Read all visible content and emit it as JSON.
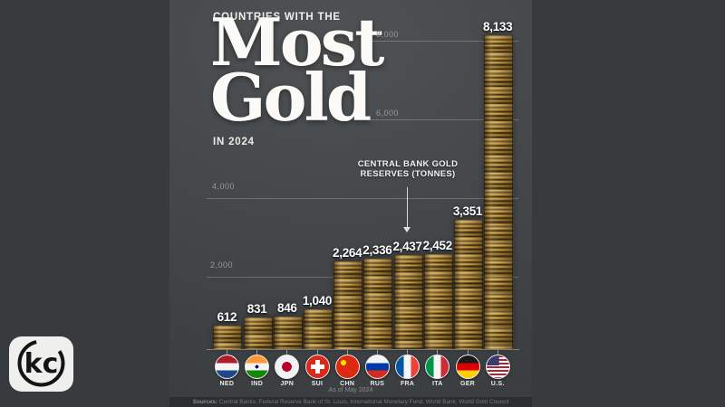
{
  "poster": {
    "kicker": "COUNTRIES WITH THE",
    "title_line1": "Most",
    "title_line2": "Gold",
    "subtitle": "IN 2024",
    "annotation_line1": "CENTRAL BANK GOLD",
    "annotation_line2": "RESERVES (TONNES)",
    "footer_asof": "As of May 2024",
    "footer_sources_label": "Sources:",
    "footer_sources": " Central Banks, Federal Reserve Bank of St. Louis, International Monetary Fund, World Bank, World Gold Council"
  },
  "chart_data": {
    "type": "bar",
    "title": "Countries with the Most Gold in 2024",
    "ylabel": "Central Bank Gold Reserves (Tonnes)",
    "xlabel": "",
    "ylim": [
      0,
      8500
    ],
    "grid": true,
    "legend": "none",
    "bar_style": "stacked-gold-coins",
    "gridlines": [
      {
        "value": 8000,
        "label": "8,000"
      },
      {
        "value": 6000,
        "label": "6,000"
      },
      {
        "value": 4000,
        "label": "4,000"
      },
      {
        "value": 2000,
        "label": "2,000"
      }
    ],
    "categories": [
      "NED",
      "IND",
      "JPN",
      "SUI",
      "CHN",
      "RUS",
      "FRA",
      "ITA",
      "GER",
      "U.S."
    ],
    "values": [
      612,
      831,
      846,
      1040,
      2264,
      2336,
      2437,
      2452,
      3351,
      8133
    ],
    "value_labels": [
      "612",
      "831",
      "846",
      "1,040",
      "2,264",
      "2,336",
      "2,437",
      "2,452",
      "3,351",
      "8,133"
    ]
  },
  "flags": [
    {
      "code": "NED",
      "name": "Netherlands",
      "type": "h3",
      "colors": [
        "#AE1C28",
        "#F5F5F5",
        "#21468B"
      ]
    },
    {
      "code": "IND",
      "name": "India",
      "type": "chakra",
      "colors": [
        "#FF9933",
        "#F5F5F5",
        "#138808"
      ],
      "accent": "#000080"
    },
    {
      "code": "JPN",
      "name": "Japan",
      "type": "disc",
      "colors": [
        "#F2F2F2",
        "#BC002D"
      ]
    },
    {
      "code": "SUI",
      "name": "Switzerland",
      "type": "cross",
      "colors": [
        "#DA291C",
        "#FFFFFF"
      ]
    },
    {
      "code": "CHN",
      "name": "China",
      "type": "star",
      "colors": [
        "#DE2910",
        "#FFDE00"
      ]
    },
    {
      "code": "RUS",
      "name": "Russia",
      "type": "h3",
      "colors": [
        "#F5F5F5",
        "#0039A6",
        "#D52B1E"
      ]
    },
    {
      "code": "FRA",
      "name": "France",
      "type": "v3",
      "colors": [
        "#0055A4",
        "#F5F5F5",
        "#EF4135"
      ]
    },
    {
      "code": "ITA",
      "name": "Italy",
      "type": "v3",
      "colors": [
        "#009246",
        "#F5F5F5",
        "#CE2B37"
      ]
    },
    {
      "code": "GER",
      "name": "Germany",
      "type": "h3",
      "colors": [
        "#1A1A1A",
        "#DD0000",
        "#FFCE00"
      ]
    },
    {
      "code": "U.S.",
      "name": "United States",
      "type": "usa",
      "colors": [
        "#B22234",
        "#FFFFFF",
        "#3C3B6E"
      ]
    }
  ],
  "watermark": {
    "text": "kc"
  },
  "colors": {
    "outer_background": "#383b3d",
    "poster_background_top": "#4f5255",
    "poster_background_bottom": "#3a3d40",
    "footer_strip": "#2b2e30",
    "gold_highlight": "#d4a94f",
    "gold_mid": "#b1873a",
    "gold_shadow": "#2c2413",
    "text_primary": "#ffffff",
    "text_muted": "#95989b",
    "grid_line": "rgba(255,255,255,0.22)"
  }
}
